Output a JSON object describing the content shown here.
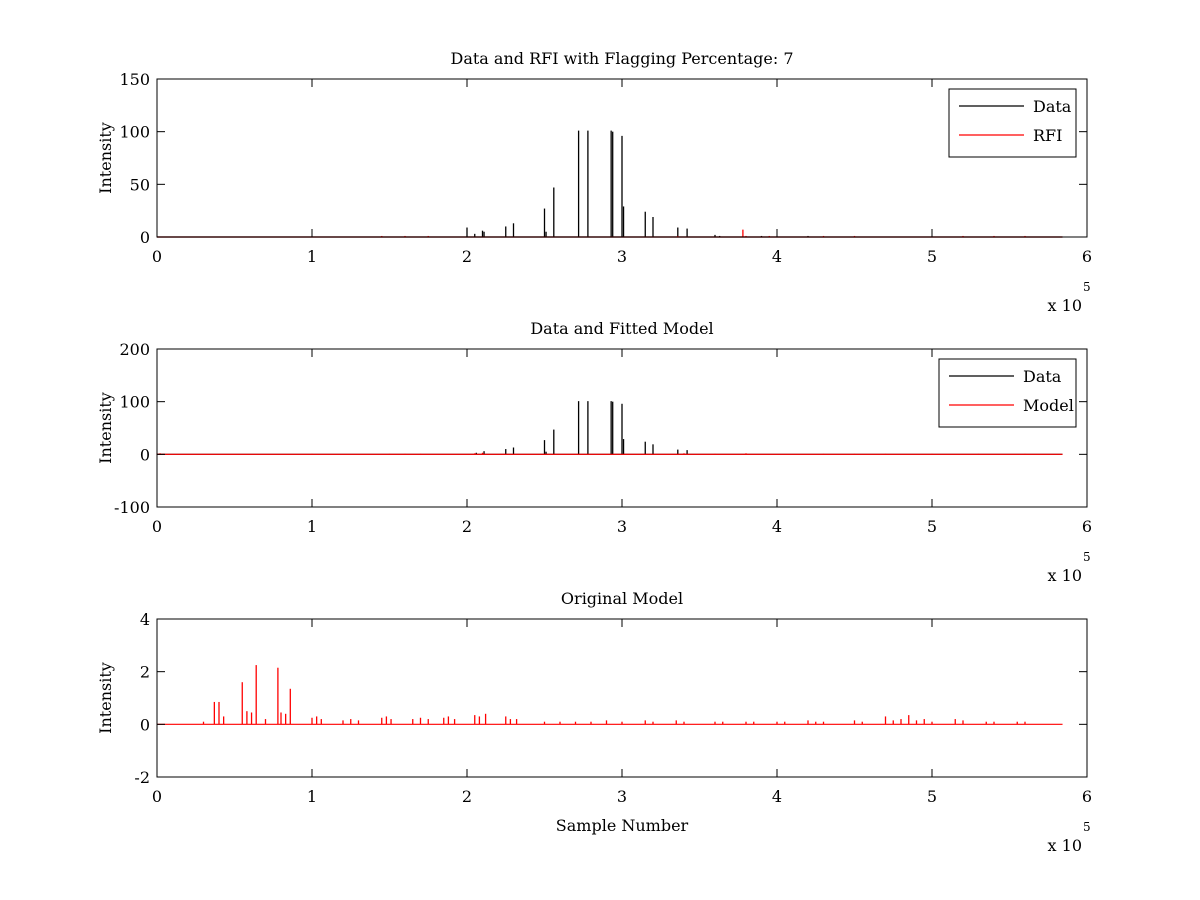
{
  "chart_data": [
    {
      "type": "line",
      "title": "Data and RFI with Flagging Percentage: 7",
      "xlabel": "",
      "ylabel": "Intensity",
      "xlim": [
        0,
        600000
      ],
      "ylim": [
        0,
        150
      ],
      "x_ticks": [
        0,
        1,
        2,
        3,
        4,
        5,
        6
      ],
      "y_ticks": [
        0,
        50,
        100,
        150
      ],
      "x_multiplier": "x 10",
      "x_exponent": "5",
      "grid": false,
      "legend": "top-right",
      "legend_entries": [
        "Data",
        "RFI"
      ],
      "series": [
        {
          "name": "Data",
          "color": "#000000",
          "x": [
            200000,
            205000,
            210000,
            211000,
            225000,
            230000,
            250000,
            251000,
            256000,
            272000,
            278000,
            293000,
            294000,
            300000,
            301000,
            315000,
            320000,
            336000,
            342000,
            360000,
            363000,
            378000,
            390000,
            420000
          ],
          "values": [
            9,
            3,
            6,
            5,
            10,
            13,
            27,
            5,
            47,
            101,
            101,
            101,
            100,
            96,
            29,
            24,
            19,
            9,
            8,
            2,
            1,
            1,
            1,
            1
          ]
        },
        {
          "name": "RFI",
          "color": "#ff0000",
          "x": [
            145000,
            160000,
            175000,
            336000,
            378000,
            380000,
            395000,
            430000,
            450000,
            520000,
            540000,
            560000
          ],
          "values": [
            1,
            1,
            1,
            1,
            7,
            1,
            1,
            1,
            1,
            1,
            1,
            1
          ]
        }
      ]
    },
    {
      "type": "line",
      "title": "Data and Fitted Model",
      "xlabel": "",
      "ylabel": "Intensity",
      "xlim": [
        0,
        600000
      ],
      "ylim": [
        -100,
        200
      ],
      "x_ticks": [
        0,
        1,
        2,
        3,
        4,
        5,
        6
      ],
      "y_ticks": [
        -100,
        0,
        100,
        200
      ],
      "x_multiplier": "x 10",
      "x_exponent": "5",
      "grid": false,
      "legend": "top-right",
      "legend_entries": [
        "Data",
        "Model"
      ],
      "series": [
        {
          "name": "Data",
          "color": "#000000",
          "x": [
            206000,
            211000,
            225000,
            230000,
            250000,
            251000,
            256000,
            272000,
            278000,
            293000,
            294000,
            300000,
            301000,
            315000,
            320000,
            336000,
            342000
          ],
          "values": [
            3,
            6,
            10,
            13,
            27,
            5,
            47,
            101,
            101,
            101,
            100,
            96,
            29,
            24,
            19,
            9,
            8
          ]
        },
        {
          "name": "Model",
          "color": "#ff0000",
          "x": [
            0,
            2000,
            4000,
            100000,
            150000,
            160000,
            170000,
            205000,
            210000,
            340000,
            360000,
            380000,
            430000,
            450000,
            470000,
            500000,
            530000,
            560000
          ],
          "values": [
            1,
            2,
            1,
            1,
            1,
            1,
            1,
            2,
            3,
            2,
            1,
            2,
            1,
            1,
            1,
            1,
            1,
            1
          ]
        }
      ]
    },
    {
      "type": "line",
      "title": "Original Model",
      "xlabel": "Sample Number",
      "ylabel": "Intensity",
      "xlim": [
        0,
        600000
      ],
      "ylim": [
        -2,
        4
      ],
      "x_ticks": [
        0,
        1,
        2,
        3,
        4,
        5,
        6
      ],
      "y_ticks": [
        -2,
        0,
        2,
        4
      ],
      "x_multiplier": "x 10",
      "x_exponent": "5",
      "grid": false,
      "legend": "none",
      "legend_entries": [],
      "series": [
        {
          "name": "",
          "color": "#ff0000",
          "x": [
            30000,
            37000,
            40000,
            43000,
            55000,
            58000,
            61000,
            64000,
            70000,
            78000,
            80000,
            83000,
            86000,
            100000,
            103000,
            106000,
            120000,
            125000,
            130000,
            145000,
            148000,
            151000,
            165000,
            170000,
            175000,
            185000,
            188000,
            192000,
            205000,
            208000,
            212000,
            225000,
            228000,
            232000,
            250000,
            260000,
            270000,
            280000,
            290000,
            300000,
            315000,
            320000,
            335000,
            340000,
            360000,
            365000,
            380000,
            385000,
            400000,
            405000,
            420000,
            425000,
            430000,
            450000,
            455000,
            470000,
            475000,
            480000,
            485000,
            490000,
            495000,
            500000,
            515000,
            520000,
            535000,
            540000,
            555000,
            560000
          ],
          "values": [
            0.1,
            0.85,
            0.85,
            0.3,
            1.6,
            0.5,
            0.45,
            2.25,
            0.2,
            2.15,
            0.45,
            0.4,
            1.35,
            0.25,
            0.3,
            0.2,
            0.15,
            0.2,
            0.15,
            0.25,
            0.3,
            0.2,
            0.2,
            0.25,
            0.2,
            0.25,
            0.3,
            0.2,
            0.35,
            0.3,
            0.4,
            0.3,
            0.2,
            0.2,
            0.1,
            0.1,
            0.1,
            0.1,
            0.15,
            0.1,
            0.15,
            0.1,
            0.15,
            0.1,
            0.1,
            0.1,
            0.1,
            0.1,
            0.1,
            0.1,
            0.15,
            0.1,
            0.1,
            0.15,
            0.1,
            0.3,
            0.15,
            0.2,
            0.35,
            0.15,
            0.2,
            0.1,
            0.2,
            0.15,
            0.1,
            0.1,
            0.1,
            0.1
          ]
        }
      ]
    }
  ]
}
